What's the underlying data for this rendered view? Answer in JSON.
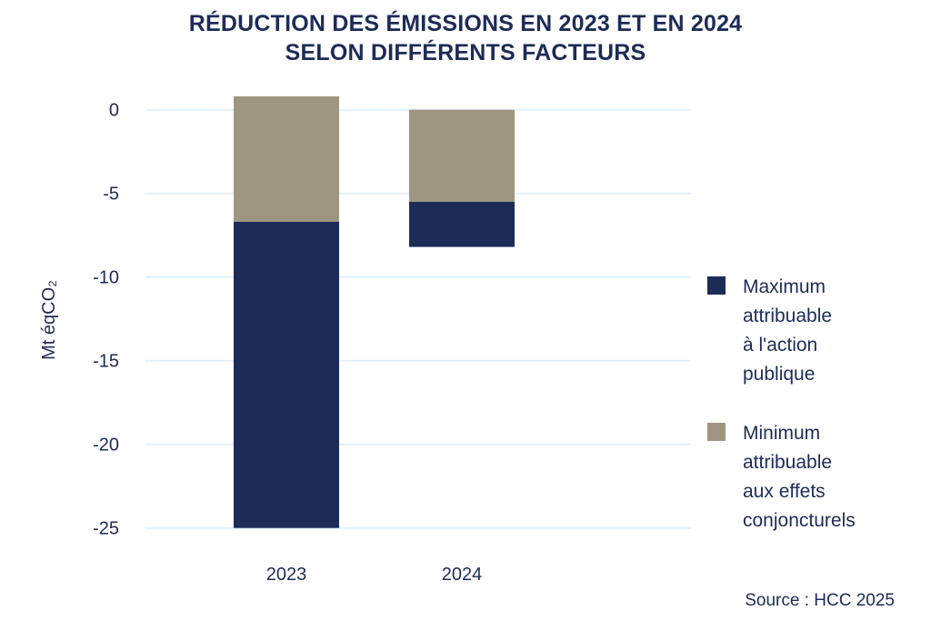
{
  "chart_data": {
    "type": "bar",
    "stacked": true,
    "title": "RÉDUCTION DES ÉMISSIONS EN 2023 ET EN 2024",
    "subtitle": "SELON DIFFÉRENTS FACTEURS",
    "xlabel": "",
    "ylabel": "Mt éqCO₂",
    "ylim": [
      -25,
      0
    ],
    "yticks": [
      "0",
      "-5",
      "-10",
      "-15",
      "-20",
      "-25"
    ],
    "categories": [
      "2023",
      "2024"
    ],
    "grid": true,
    "legend_position": "right",
    "series": [
      {
        "name": "Maximum attribuable à l'action publique",
        "color": "#1d2b57",
        "ranges": [
          [
            -6.7,
            -25
          ],
          [
            -5.5,
            -8.2
          ]
        ]
      },
      {
        "name": "Minimum attribuable aux effets conjoncturels",
        "color": "#9e9680",
        "ranges": [
          [
            0.8,
            -6.7
          ],
          [
            0,
            -5.5
          ]
        ]
      }
    ],
    "legend_lines": [
      [
        "Maximum",
        "attribuable",
        "à l'action",
        "publique"
      ],
      [
        "Minimum",
        "attribuable",
        "aux effets",
        "conjoncturels"
      ]
    ]
  },
  "source": "Source : HCC 2025"
}
